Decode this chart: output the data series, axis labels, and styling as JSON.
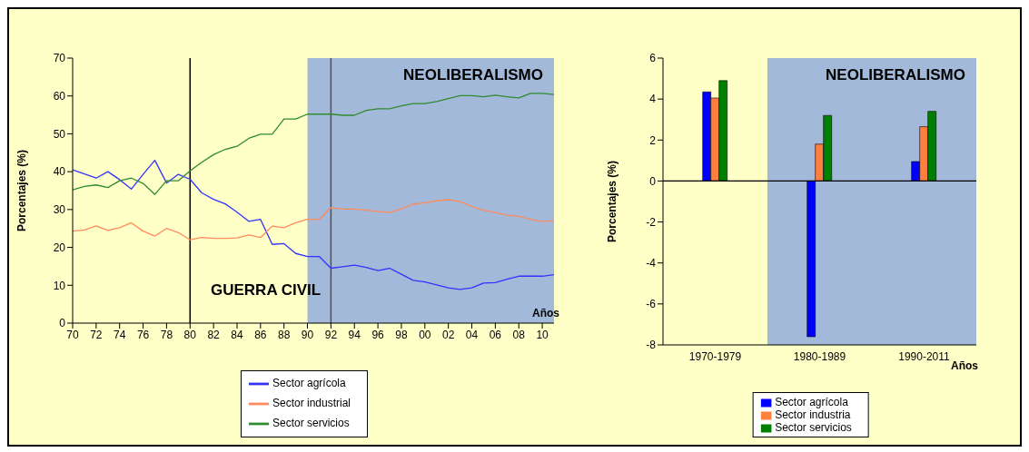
{
  "chart_data": [
    {
      "type": "line",
      "xlabel": "Años",
      "ylabel": "Porcentajes (%)",
      "x": [
        1970,
        1971,
        1972,
        1973,
        1974,
        1975,
        1976,
        1977,
        1978,
        1979,
        1980,
        1981,
        1982,
        1983,
        1984,
        1985,
        1986,
        1987,
        1988,
        1989,
        1990,
        1991,
        1992,
        1993,
        1994,
        1995,
        1996,
        1997,
        1998,
        1999,
        2000,
        2001,
        2002,
        2003,
        2004,
        2005,
        2006,
        2007,
        2008,
        2009,
        2010,
        2011
      ],
      "series": [
        {
          "name": "Sector agrícola",
          "color": "#3333ff",
          "values": [
            40.5,
            39.4,
            38.3,
            40.0,
            37.9,
            35.4,
            39.3,
            43.0,
            37.0,
            39.3,
            38.0,
            34.4,
            32.7,
            31.5,
            29.3,
            26.9,
            27.4,
            20.8,
            21.0,
            18.4,
            17.6,
            17.6,
            14.5,
            14.9,
            15.3,
            14.7,
            13.9,
            14.5,
            12.9,
            11.3,
            10.9,
            10.1,
            9.3,
            8.9,
            9.3,
            10.6,
            10.7,
            11.6,
            12.4,
            12.4,
            12.4,
            12.8
          ]
        },
        {
          "name": "Sector industrial",
          "color": "#ff8a5c",
          "values": [
            24.3,
            24.6,
            25.7,
            24.5,
            25.2,
            26.5,
            24.3,
            23.0,
            25.0,
            23.9,
            22.0,
            22.6,
            22.4,
            22.4,
            22.5,
            23.3,
            22.6,
            25.6,
            25.2,
            26.5,
            27.4,
            27.4,
            30.5,
            30.1,
            30.1,
            29.8,
            29.5,
            29.2,
            30.2,
            31.4,
            31.8,
            32.3,
            32.6,
            32.1,
            30.8,
            29.8,
            29.2,
            28.5,
            28.2,
            27.4,
            26.8,
            27.1
          ]
        },
        {
          "name": "Sector servicios",
          "color": "#2e8b2e",
          "values": [
            35.2,
            36.1,
            36.5,
            35.8,
            37.6,
            38.3,
            36.9,
            34.0,
            37.6,
            37.6,
            40.2,
            42.5,
            44.5,
            45.9,
            46.7,
            48.8,
            49.9,
            49.9,
            53.9,
            53.9,
            55.2,
            55.2,
            55.2,
            54.9,
            54.9,
            56.2,
            56.6,
            56.6,
            57.4,
            58.0,
            58.0,
            58.5,
            59.3,
            60.1,
            60.1,
            59.8,
            60.2,
            59.8,
            59.5,
            60.7,
            60.7,
            60.4
          ]
        }
      ],
      "xlim": [
        1970,
        2011
      ],
      "xticks": [
        {
          "value": 1970,
          "label": "70"
        },
        {
          "value": 1972,
          "label": "72"
        },
        {
          "value": 1974,
          "label": "74"
        },
        {
          "value": 1976,
          "label": "76"
        },
        {
          "value": 1978,
          "label": "78"
        },
        {
          "value": 1980,
          "label": "80"
        },
        {
          "value": 1982,
          "label": "82"
        },
        {
          "value": 1984,
          "label": "84"
        },
        {
          "value": 1986,
          "label": "86"
        },
        {
          "value": 1988,
          "label": "88"
        },
        {
          "value": 1990,
          "label": "90"
        },
        {
          "value": 1992,
          "label": "92"
        },
        {
          "value": 1994,
          "label": "94"
        },
        {
          "value": 1996,
          "label": "96"
        },
        {
          "value": 1998,
          "label": "98"
        },
        {
          "value": 2000,
          "label": "00"
        },
        {
          "value": 2002,
          "label": "02"
        },
        {
          "value": 2004,
          "label": "04"
        },
        {
          "value": 2006,
          "label": "06"
        },
        {
          "value": 2008,
          "label": "08"
        },
        {
          "value": 2010,
          "label": "10"
        }
      ],
      "ylim": [
        0,
        70
      ],
      "yticks": [
        0,
        10,
        20,
        30,
        40,
        50,
        60,
        70
      ],
      "bands": [
        {
          "axis": "x",
          "from": 1990,
          "to": 2011,
          "label": "NEOLIBERALISMO",
          "color": "#a3b9d9"
        }
      ],
      "ref_lines": [
        {
          "axis": "x",
          "value": 1980,
          "color": "#000000"
        },
        {
          "axis": "x",
          "value": 1992,
          "color": "#4a5060"
        }
      ],
      "annotations": [
        "GUERRA CIVIL"
      ],
      "legend": "bottom",
      "grid": false,
      "marker": "none",
      "line_style": "solid"
    },
    {
      "type": "bar",
      "xlabel": "Años",
      "ylabel": "Porcentajes (%)",
      "categories": [
        "1970-1979",
        "1980-1989",
        "1990-2011"
      ],
      "series": [
        {
          "name": "Sector agrícola",
          "color": "#0000ff",
          "values": [
            4.35,
            -7.6,
            0.95
          ]
        },
        {
          "name": "Sector industria",
          "color": "#ff7f3f",
          "values": [
            4.05,
            1.8,
            2.65
          ]
        },
        {
          "name": "Sector servicios",
          "color": "#008000",
          "values": [
            4.9,
            3.2,
            3.4
          ]
        }
      ],
      "ylim": [
        -8,
        6
      ],
      "yticks": [
        -8,
        -6,
        -4,
        -2,
        0,
        2,
        4,
        6
      ],
      "bands": [
        {
          "axis": "x",
          "from": "1980-1989",
          "to": "1990-2011",
          "label": "NEOLIBERALISMO",
          "color": "#a3b9d9"
        }
      ],
      "ref_lines": [
        {
          "axis": "y",
          "value": 0,
          "color": "#000000"
        }
      ],
      "legend": "bottom",
      "grid": false
    }
  ]
}
